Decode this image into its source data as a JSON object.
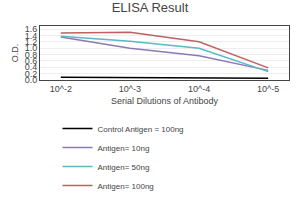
{
  "chart_data": {
    "type": "line",
    "title": "ELISA Result",
    "xlabel": "Serial Dilutions of Antibody",
    "ylabel": "O.D.",
    "x": [
      0.01,
      0.001,
      0.0001,
      1e-05
    ],
    "series": [
      {
        "name": "Control Antigen = 100ng",
        "color": "#000000",
        "values": [
          0.08,
          0.07,
          0.06,
          0.05
        ]
      },
      {
        "name": "Antigen= 10ng",
        "color": "#8B7BB5",
        "values": [
          1.35,
          1.0,
          0.76,
          0.3
        ]
      },
      {
        "name": "Antigen= 50ng",
        "color": "#5BB8C8",
        "values": [
          1.38,
          1.22,
          1.0,
          0.26
        ]
      },
      {
        "name": "Antigen= 100ng",
        "color": "#C06060",
        "values": [
          1.48,
          1.5,
          1.2,
          0.38
        ]
      }
    ],
    "log": "x",
    "xlim": [
      0.02,
      5e-06
    ],
    "xticks": [
      {
        "value": 0.01,
        "label": "10^-2"
      },
      {
        "value": 0.001,
        "label": "10^-3"
      },
      {
        "value": 0.0001,
        "label": "10^-4"
      },
      {
        "value": 1e-05,
        "label": "10^-5"
      }
    ],
    "ylim": [
      0,
      1.7
    ],
    "yticks": [
      {
        "value": 0,
        "label": "0.0"
      },
      0.2,
      0.4,
      0.6,
      0.8,
      {
        "value": 1.0,
        "label": "1.0"
      },
      1.2,
      1.4,
      1.6
    ],
    "grid": "y",
    "legend": "bottom"
  }
}
